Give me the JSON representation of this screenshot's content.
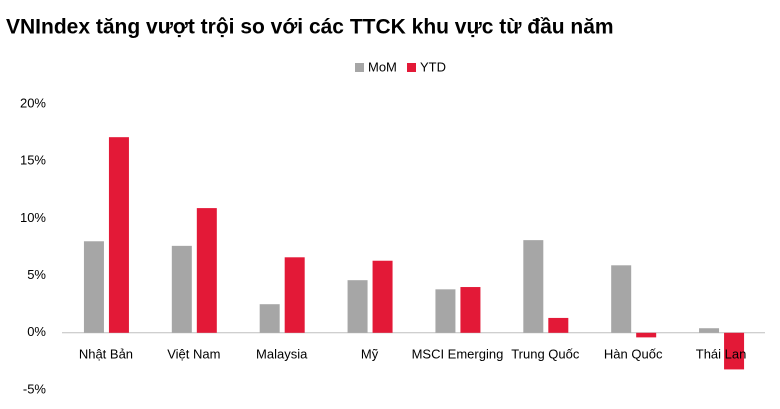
{
  "chart_data": {
    "type": "bar",
    "title": "VNIndex tăng vượt trội so với các TTCK khu vực từ đầu năm",
    "categories": [
      "Nhật Bản",
      "Việt Nam",
      "Malaysia",
      "Mỹ",
      "MSCI Emerging",
      "Trung Quốc",
      "Hàn Quốc",
      "Thái Lan"
    ],
    "series": [
      {
        "name": "MoM",
        "color": "#a6a6a6",
        "values": [
          8.0,
          7.6,
          2.5,
          4.6,
          3.8,
          8.1,
          5.9,
          0.4
        ]
      },
      {
        "name": "YTD",
        "color": "#e31937",
        "values": [
          17.1,
          10.9,
          6.6,
          6.3,
          4.0,
          1.3,
          -0.4,
          -3.2
        ]
      }
    ],
    "ylim": [
      -5,
      20
    ],
    "yticks": [
      {
        "value": -5,
        "label": "-5%"
      },
      {
        "value": 0,
        "label": "0%"
      },
      {
        "value": 5,
        "label": "5%"
      },
      {
        "value": 10,
        "label": "10%"
      },
      {
        "value": 15,
        "label": "15%"
      },
      {
        "value": 20,
        "label": "20%"
      }
    ],
    "legend": "top"
  }
}
